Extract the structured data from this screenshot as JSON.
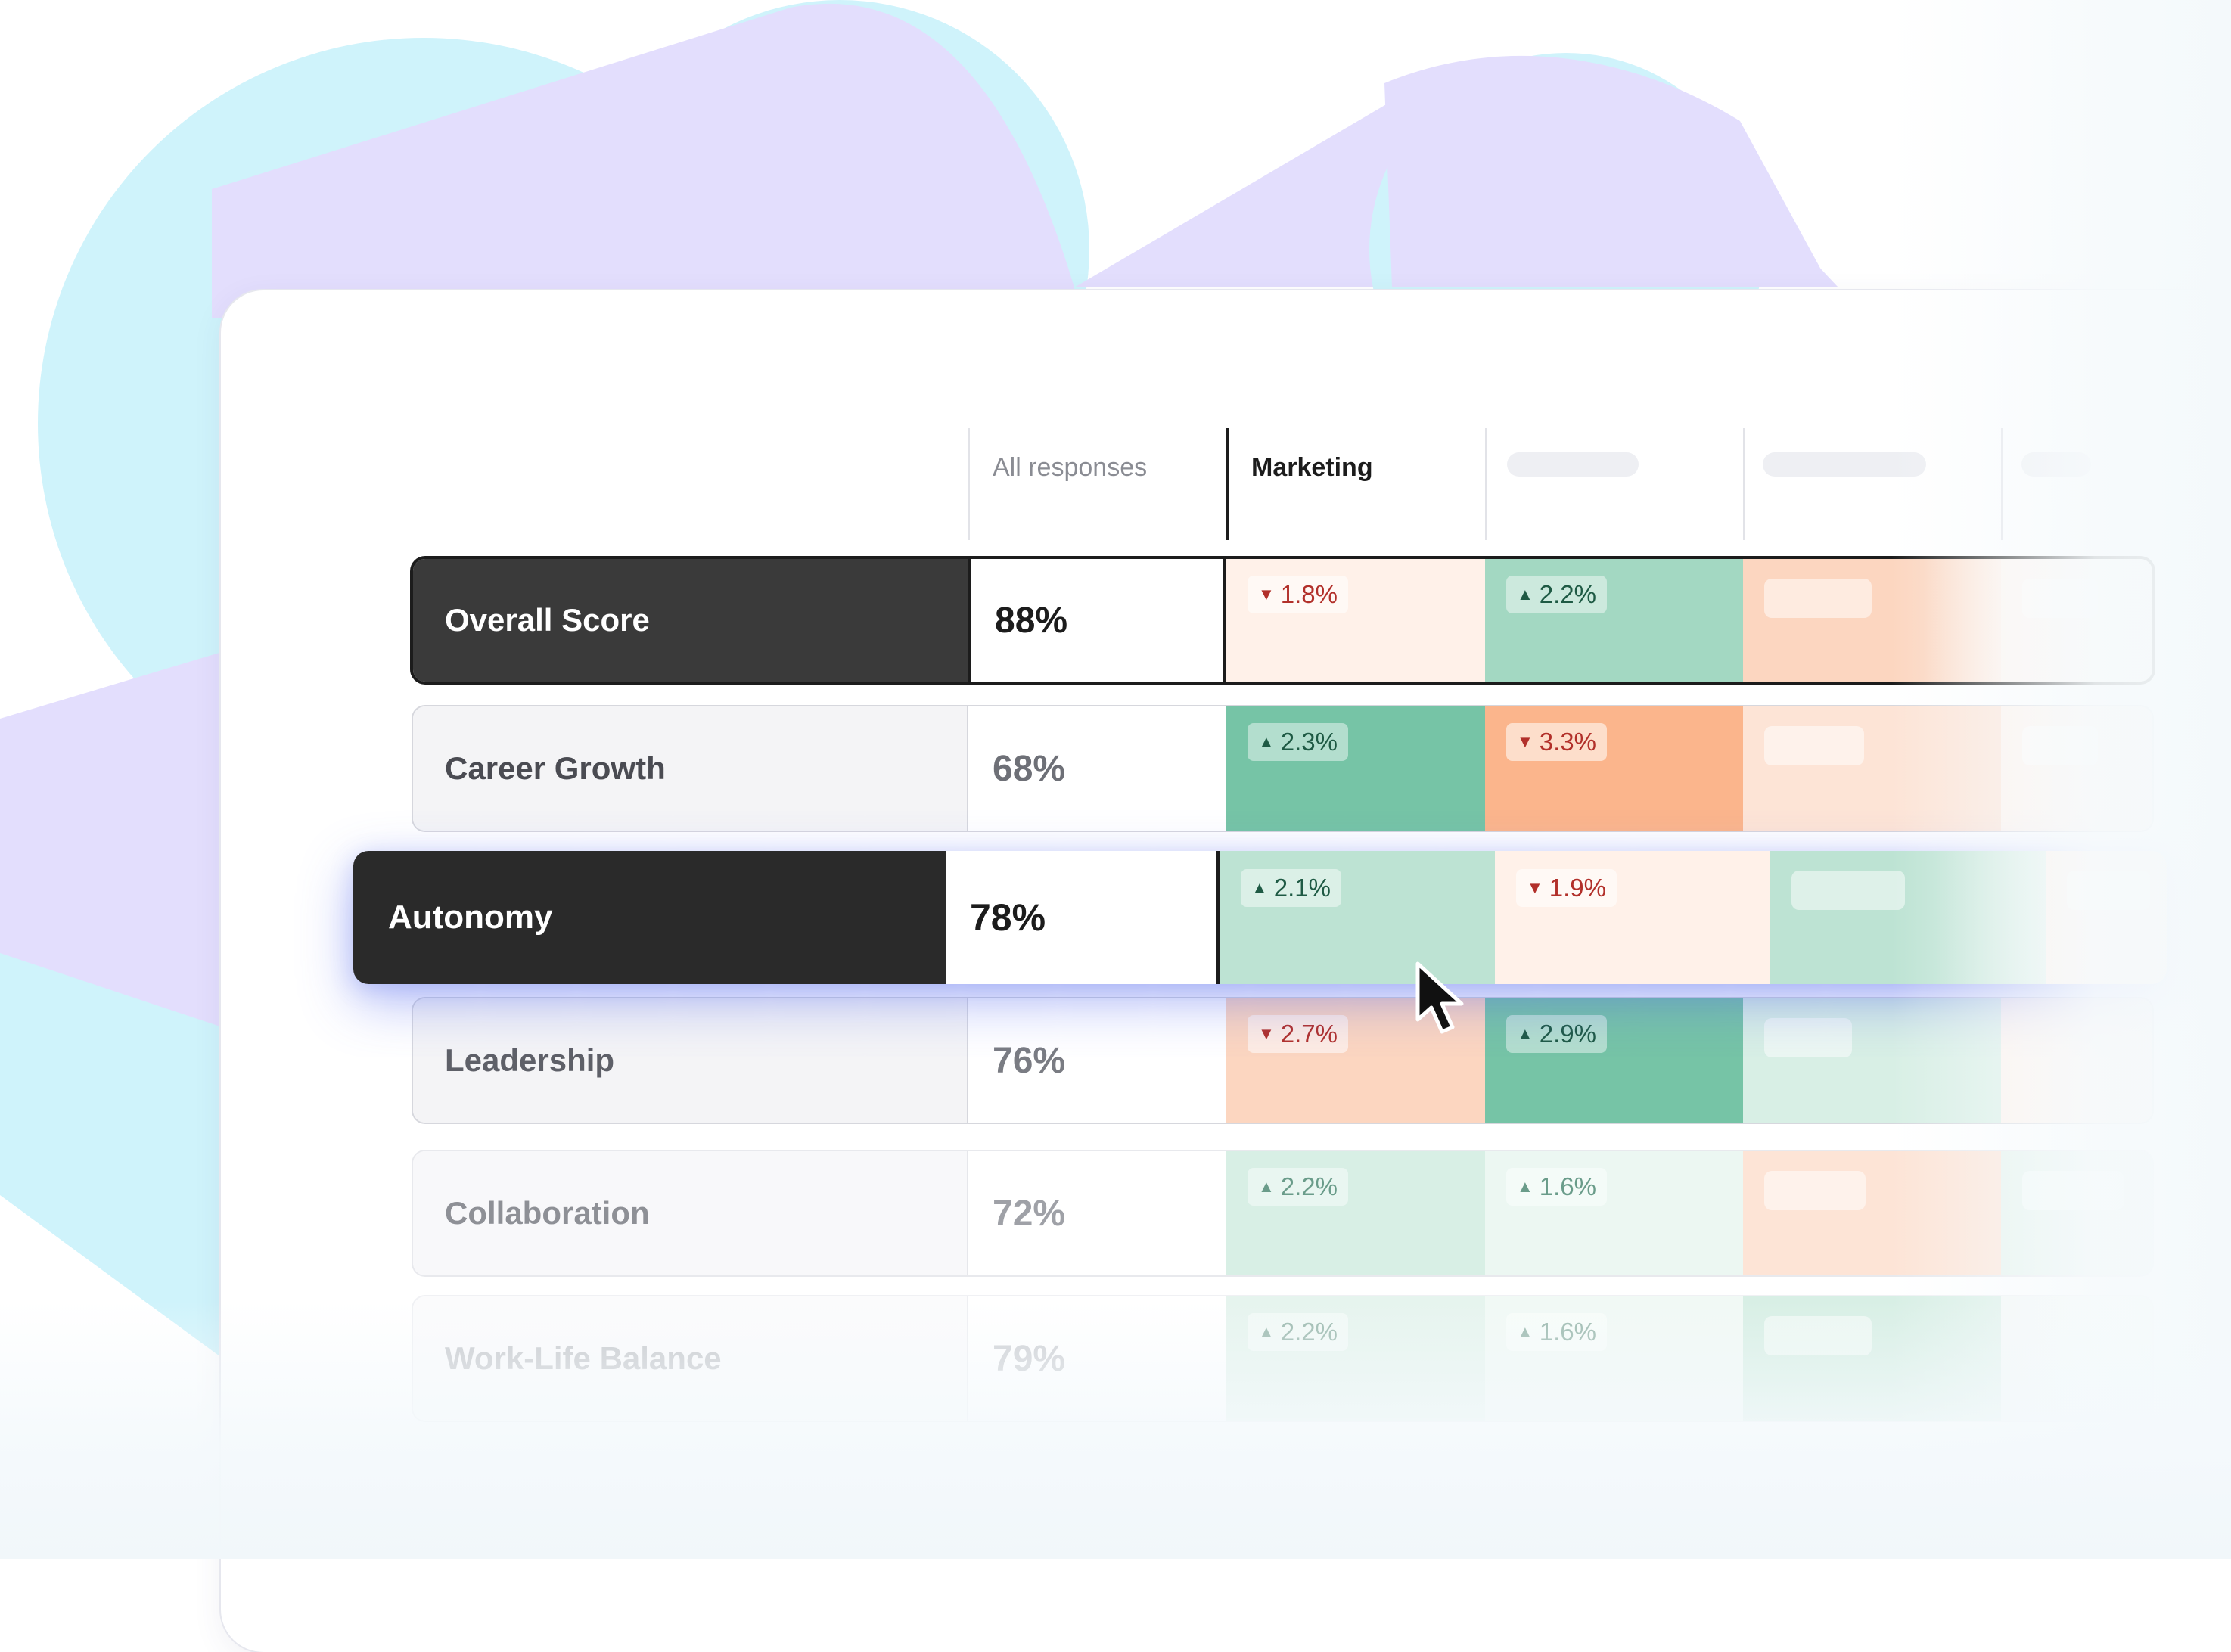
{
  "table": {
    "columns": [
      {
        "label": "All responses"
      },
      {
        "label": "Marketing"
      },
      {
        "label": ""
      },
      {
        "label": ""
      },
      {
        "label": ""
      }
    ],
    "rows": [
      {
        "label": "Overall Score",
        "value": "88%",
        "style": "highlighted",
        "deltas": [
          {
            "dir": "down",
            "text": "1.8%"
          },
          {
            "dir": "up",
            "text": "2.2%"
          },
          null,
          null
        ]
      },
      {
        "label": "Career Growth",
        "value": "68%",
        "style": "normal",
        "deltas": [
          {
            "dir": "up",
            "text": "2.3%"
          },
          {
            "dir": "down",
            "text": "3.3%"
          },
          null,
          null
        ]
      },
      {
        "label": "Autonomy",
        "value": "78%",
        "style": "selected",
        "deltas": [
          {
            "dir": "up",
            "text": "2.1%"
          },
          {
            "dir": "down",
            "text": "1.9%"
          },
          null,
          null
        ]
      },
      {
        "label": "Leadership",
        "value": "76%",
        "style": "normal",
        "deltas": [
          {
            "dir": "down",
            "text": "2.7%"
          },
          {
            "dir": "up",
            "text": "2.9%"
          },
          null,
          null
        ]
      },
      {
        "label": "Collaboration",
        "value": "72%",
        "style": "faint",
        "deltas": [
          {
            "dir": "up",
            "text": "2.2%"
          },
          {
            "dir": "up",
            "text": "1.6%"
          },
          null,
          null
        ]
      },
      {
        "label": "Work-Life Balance",
        "value": "79%",
        "style": "faint2",
        "deltas": [
          {
            "dir": "up",
            "text": "2.2%"
          },
          {
            "dir": "up",
            "text": "1.6%"
          },
          null,
          null
        ]
      }
    ]
  },
  "icons": {
    "up": "caret-up-icon",
    "down": "caret-down-icon",
    "cursor": "mouse-pointer-icon"
  },
  "colors": {
    "dark_row": "#3a3a3a",
    "selected_row": "#2a2a2a",
    "green_strong": "#76c4a6",
    "green_mid": "#a3d8c2",
    "green_light": "#bde3d3",
    "green_pale": "#d8efe5",
    "orange_strong": "#fbb58c",
    "orange_mid": "#fcd6c0",
    "orange_pale": "#fff1e9"
  }
}
